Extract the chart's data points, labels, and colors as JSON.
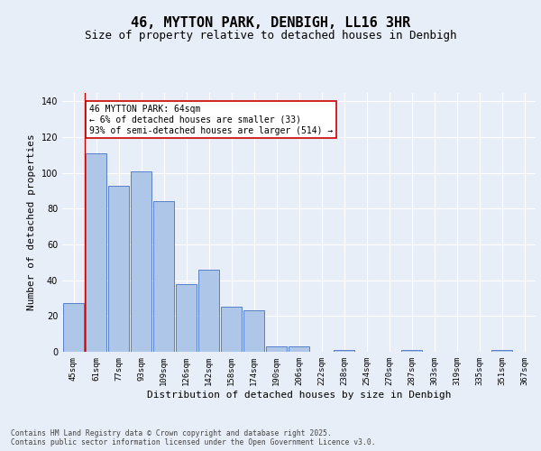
{
  "title1": "46, MYTTON PARK, DENBIGH, LL16 3HR",
  "title2": "Size of property relative to detached houses in Denbigh",
  "xlabel": "Distribution of detached houses by size in Denbigh",
  "ylabel": "Number of detached properties",
  "categories": [
    "45sqm",
    "61sqm",
    "77sqm",
    "93sqm",
    "109sqm",
    "126sqm",
    "142sqm",
    "158sqm",
    "174sqm",
    "190sqm",
    "206sqm",
    "222sqm",
    "238sqm",
    "254sqm",
    "270sqm",
    "287sqm",
    "303sqm",
    "319sqm",
    "335sqm",
    "351sqm",
    "367sqm"
  ],
  "values": [
    27,
    111,
    93,
    101,
    84,
    38,
    46,
    25,
    23,
    3,
    3,
    0,
    1,
    0,
    0,
    1,
    0,
    0,
    0,
    1,
    0
  ],
  "bar_color": "#aec6e8",
  "bar_edge_color": "#4472c4",
  "vline_x": 0.5,
  "vline_color": "#cc0000",
  "annotation_text": "46 MYTTON PARK: 64sqm\n← 6% of detached houses are smaller (33)\n93% of semi-detached houses are larger (514) →",
  "annotation_box_color": "#ffffff",
  "annotation_box_edge": "#cc0000",
  "footnote": "Contains HM Land Registry data © Crown copyright and database right 2025.\nContains public sector information licensed under the Open Government Licence v3.0.",
  "ylim": [
    0,
    145
  ],
  "yticks": [
    0,
    20,
    40,
    60,
    80,
    100,
    120,
    140
  ],
  "bg_color": "#e8eef7",
  "grid_color": "#ffffff",
  "title_fontsize": 11,
  "subtitle_fontsize": 9,
  "tick_fontsize": 6.5,
  "ylabel_fontsize": 8,
  "xlabel_fontsize": 8,
  "footnote_fontsize": 5.8
}
